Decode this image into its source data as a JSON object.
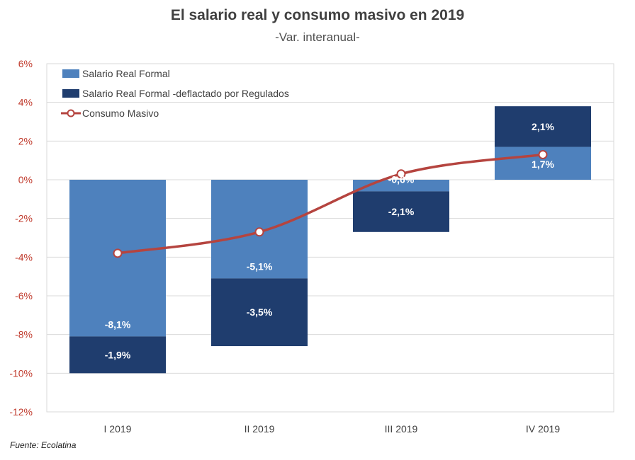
{
  "chart_data": {
    "type": "bar",
    "stacked": true,
    "title": "El salario real y consumo masivo en 2019",
    "subtitle": "-Var. interanual-",
    "categories": [
      "I 2019",
      "II 2019",
      "III 2019",
      "IV 2019"
    ],
    "ylim": [
      -12,
      6
    ],
    "yticks": [
      6,
      4,
      2,
      0,
      -2,
      -4,
      -6,
      -8,
      -10,
      -12
    ],
    "ytick_labels": [
      "6%",
      "4%",
      "2%",
      "0%",
      "-2%",
      "-4%",
      "-6%",
      "-8%",
      "-10%",
      "-12%"
    ],
    "grid": "horizontal",
    "legend_position": "top-left",
    "series": [
      {
        "name": "Salario Real Formal",
        "kind": "bar",
        "color": "#4e81bd",
        "values": [
          -8.1,
          -5.1,
          -0.6,
          1.7
        ],
        "labels": [
          "-8,1%",
          "-5,1%",
          "-0,6%",
          "1,7%"
        ]
      },
      {
        "name": "Salario Real Formal -deflactado por Regulados",
        "kind": "bar",
        "color": "#1f3d6e",
        "values": [
          -1.9,
          -3.5,
          -2.1,
          2.1
        ],
        "labels": [
          "-1,9%",
          "-3,5%",
          "-2,1%",
          "2,1%"
        ]
      },
      {
        "name": "Consumo Masivo",
        "kind": "line",
        "color": "#b5443f",
        "values": [
          -3.8,
          -2.7,
          0.3,
          1.3
        ]
      }
    ]
  },
  "source": "Fuente: Ecolatina"
}
